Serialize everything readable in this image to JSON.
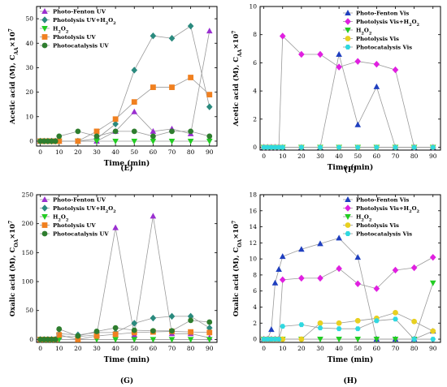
{
  "chart_data": [
    {
      "type": "line",
      "panel_label": "(E)",
      "ylabel_main": "Acetic acid (M), C",
      "ylabel_sub": "AA",
      "ylabel_sup": "×10",
      "ylabel_exp": "7",
      "xlabel": "Time (min)",
      "xlim": [
        -2,
        94
      ],
      "ylim": [
        -2,
        55
      ],
      "x_ticks": [
        0,
        10,
        20,
        30,
        40,
        50,
        60,
        70,
        80,
        90
      ],
      "y_ticks": [
        0,
        10,
        20,
        30,
        40,
        50
      ],
      "legend_position": "top-left",
      "series": [
        {
          "name": "Photo-Fenton UV",
          "color": "#9a2fd0",
          "marker": "triangle-up",
          "x": [
            0,
            2,
            4,
            6,
            8,
            10,
            20,
            30,
            40,
            50,
            60,
            70,
            80,
            90
          ],
          "y": [
            0,
            0,
            0,
            0,
            0,
            0,
            0,
            0,
            4,
            12,
            4,
            5,
            3,
            45
          ]
        },
        {
          "name": "Photolysis UV+H2O2",
          "color": "#2a8a7e",
          "marker": "diamond",
          "x": [
            0,
            2,
            4,
            6,
            8,
            10,
            20,
            30,
            40,
            50,
            60,
            70,
            80,
            90
          ],
          "y": [
            0,
            0,
            0,
            0,
            0,
            0,
            0,
            1,
            7,
            29,
            43,
            42,
            47,
            14
          ]
        },
        {
          "name": "H2O2",
          "color": "#22cc22",
          "marker": "triangle-down",
          "x": [
            0,
            2,
            4,
            6,
            8,
            10,
            20,
            30,
            40,
            50,
            60,
            70,
            80,
            90
          ],
          "y": [
            0,
            0,
            0,
            0,
            0,
            0,
            0,
            0,
            0,
            0,
            0,
            0,
            0,
            0
          ]
        },
        {
          "name": "Photolysis UV",
          "color": "#f08020",
          "marker": "square",
          "x": [
            0,
            2,
            4,
            6,
            8,
            10,
            20,
            30,
            40,
            50,
            60,
            70,
            80,
            90
          ],
          "y": [
            0,
            0,
            0,
            0,
            0,
            0,
            0,
            4,
            9,
            16,
            22,
            22,
            26,
            19
          ]
        },
        {
          "name": "Photocatalysis UV",
          "color": "#2e7d2e",
          "marker": "circle",
          "x": [
            0,
            2,
            4,
            6,
            8,
            10,
            20,
            30,
            40,
            50,
            60,
            70,
            80,
            90
          ],
          "y": [
            0,
            0,
            0,
            0,
            0,
            2,
            4,
            2,
            4,
            4,
            2,
            4,
            4,
            2
          ]
        }
      ]
    },
    {
      "type": "line",
      "panel_label": "(F)",
      "ylabel_main": "Acetic acid (M), C",
      "ylabel_sub": "AA",
      "ylabel_sup": "×10",
      "ylabel_exp": "7",
      "xlabel": "Time (min)",
      "xlim": [
        -2,
        94
      ],
      "ylim": [
        -0.2,
        10
      ],
      "x_ticks": [
        0,
        10,
        20,
        30,
        40,
        50,
        60,
        70,
        80,
        90
      ],
      "y_ticks": [
        0,
        2,
        4,
        6,
        8,
        10
      ],
      "legend_position": "top-right",
      "series": [
        {
          "name": "Photo-Fenton Vis",
          "color": "#1f3fbf",
          "marker": "triangle-up",
          "x": [
            0,
            2,
            4,
            6,
            8,
            10,
            20,
            30,
            40,
            50,
            60,
            70,
            80,
            90
          ],
          "y": [
            0,
            0,
            0,
            0,
            0,
            0,
            0,
            0,
            6.6,
            1.6,
            4.3,
            0,
            0,
            0
          ]
        },
        {
          "name": "Photolysis Vis+H2O2",
          "color": "#e020e0",
          "marker": "diamond",
          "x": [
            0,
            2,
            4,
            6,
            8,
            10,
            20,
            30,
            40,
            50,
            60,
            70,
            80,
            90
          ],
          "y": [
            0,
            0,
            0,
            0,
            0,
            7.9,
            6.6,
            6.6,
            5.7,
            6.1,
            5.9,
            5.5,
            0,
            0
          ]
        },
        {
          "name": "H2O2",
          "color": "#22cc22",
          "marker": "triangle-down",
          "x": [
            0,
            2,
            4,
            6,
            8,
            10,
            20,
            30,
            40,
            50,
            60,
            70,
            80,
            90
          ],
          "y": [
            0,
            0,
            0,
            0,
            0,
            0,
            0,
            0,
            0,
            0,
            0,
            0,
            0,
            0
          ]
        },
        {
          "name": "Photolysis Vis",
          "color": "#e8d020",
          "marker": "circle",
          "x": [
            0,
            2,
            4,
            6,
            8,
            10,
            20,
            30,
            40,
            50,
            60,
            70,
            80,
            90
          ],
          "y": [
            0,
            0,
            0,
            0,
            0,
            0,
            0,
            0,
            0,
            0,
            0,
            0,
            0,
            0
          ]
        },
        {
          "name": "Photocatalysis Vis",
          "color": "#30d8e0",
          "marker": "hexagon",
          "x": [
            0,
            2,
            4,
            6,
            8,
            10,
            20,
            30,
            40,
            50,
            60,
            70,
            80,
            90
          ],
          "y": [
            0,
            0,
            0,
            0,
            0,
            0,
            0,
            0,
            0,
            0,
            0,
            0,
            0,
            0
          ]
        }
      ]
    },
    {
      "type": "line",
      "panel_label": "(G)",
      "ylabel_main": "Oxalic acid (M), C",
      "ylabel_sub": "OA",
      "ylabel_sup": "×10",
      "ylabel_exp": "7",
      "xlabel": "Time (min)",
      "xlim": [
        -2,
        94
      ],
      "ylim": [
        -5,
        250
      ],
      "x_ticks": [
        0,
        10,
        20,
        30,
        40,
        50,
        60,
        70,
        80,
        90
      ],
      "y_ticks": [
        0,
        50,
        100,
        150,
        200,
        250
      ],
      "legend_position": "top-left",
      "series": [
        {
          "name": "Photo-Fenton UV",
          "color": "#9a2fd0",
          "marker": "triangle-up",
          "x": [
            0,
            2,
            4,
            6,
            8,
            10,
            20,
            30,
            40,
            50,
            60,
            70,
            80,
            90
          ],
          "y": [
            0,
            0,
            0,
            0,
            0,
            5,
            5,
            8,
            193,
            8,
            213,
            10,
            10,
            3
          ]
        },
        {
          "name": "Photolysis UV+H2O2",
          "color": "#2a8a7e",
          "marker": "diamond",
          "x": [
            0,
            2,
            4,
            6,
            8,
            10,
            20,
            30,
            40,
            50,
            60,
            70,
            80,
            90
          ],
          "y": [
            0,
            0,
            0,
            0,
            0,
            10,
            8,
            12,
            12,
            28,
            37,
            40,
            40,
            20
          ]
        },
        {
          "name": "H2O2",
          "color": "#22cc22",
          "marker": "triangle-down",
          "x": [
            0,
            2,
            4,
            6,
            8,
            10,
            20,
            30,
            40,
            50,
            60,
            70,
            80,
            90
          ],
          "y": [
            0,
            0,
            0,
            0,
            0,
            0,
            0,
            0,
            0,
            0,
            0,
            0,
            0,
            0
          ]
        },
        {
          "name": "Photolysis UV",
          "color": "#f08020",
          "marker": "square",
          "x": [
            0,
            2,
            4,
            6,
            8,
            10,
            20,
            30,
            40,
            50,
            60,
            70,
            80,
            90
          ],
          "y": [
            0,
            0,
            0,
            0,
            0,
            8,
            0,
            6,
            9,
            12,
            13,
            14,
            13,
            12
          ]
        },
        {
          "name": "Photocatalysis UV",
          "color": "#2e7d2e",
          "marker": "circle",
          "x": [
            0,
            2,
            4,
            6,
            8,
            10,
            20,
            30,
            40,
            50,
            60,
            70,
            80,
            90
          ],
          "y": [
            0,
            0,
            0,
            0,
            0,
            18,
            6,
            14,
            20,
            16,
            15,
            15,
            33,
            30
          ]
        }
      ]
    },
    {
      "type": "line",
      "panel_label": "(H)",
      "ylabel_main": "Oxalic acid (M), C",
      "ylabel_sub": "OA",
      "ylabel_sup": "×10",
      "ylabel_exp": "7",
      "xlabel": "Time (min)",
      "xlim": [
        -2,
        94
      ],
      "ylim": [
        -0.4,
        18
      ],
      "x_ticks": [
        0,
        10,
        20,
        30,
        40,
        50,
        60,
        70,
        80,
        90
      ],
      "y_ticks": [
        0,
        2,
        4,
        6,
        8,
        10,
        12,
        14,
        16,
        18
      ],
      "legend_position": "top-right",
      "series": [
        {
          "name": "Photo-Fenton Vis",
          "color": "#1f3fbf",
          "marker": "triangle-up",
          "x": [
            0,
            2,
            4,
            6,
            8,
            10,
            20,
            30,
            40,
            50,
            60,
            70,
            80,
            90
          ],
          "y": [
            0,
            0,
            1.2,
            7.0,
            8.7,
            10.3,
            11.2,
            11.9,
            12.6,
            10.2,
            0,
            0,
            0,
            1.0
          ]
        },
        {
          "name": "Photolysis Vis+H2O2",
          "color": "#e020e0",
          "marker": "diamond",
          "x": [
            0,
            2,
            4,
            6,
            8,
            10,
            20,
            30,
            40,
            50,
            60,
            70,
            80,
            90
          ],
          "y": [
            0,
            0,
            0,
            0,
            0,
            7.4,
            7.6,
            7.6,
            8.8,
            6.9,
            6.3,
            8.6,
            8.9,
            10.2
          ]
        },
        {
          "name": "H2O2",
          "color": "#22cc22",
          "marker": "triangle-down",
          "x": [
            0,
            2,
            4,
            6,
            8,
            10,
            20,
            30,
            40,
            50,
            60,
            70,
            80,
            90
          ],
          "y": [
            0,
            0,
            0,
            0,
            0,
            0,
            0,
            0,
            0,
            0,
            0,
            0,
            0,
            7.0
          ]
        },
        {
          "name": "Photolysis Vis",
          "color": "#e8d020",
          "marker": "circle",
          "x": [
            0,
            2,
            4,
            6,
            8,
            10,
            20,
            30,
            40,
            50,
            60,
            70,
            80,
            90
          ],
          "y": [
            0,
            0,
            0,
            0,
            0,
            0,
            0,
            2.0,
            2.0,
            2.3,
            2.6,
            3.3,
            2.2,
            1.0
          ]
        },
        {
          "name": "Photocatalysis Vis",
          "color": "#30d8e0",
          "marker": "hexagon",
          "x": [
            0,
            2,
            4,
            6,
            8,
            10,
            20,
            30,
            40,
            50,
            60,
            70,
            80,
            90
          ],
          "y": [
            0,
            0,
            0,
            0,
            0,
            1.6,
            1.8,
            1.4,
            1.3,
            1.3,
            2.3,
            2.5,
            0,
            0
          ]
        }
      ]
    }
  ]
}
